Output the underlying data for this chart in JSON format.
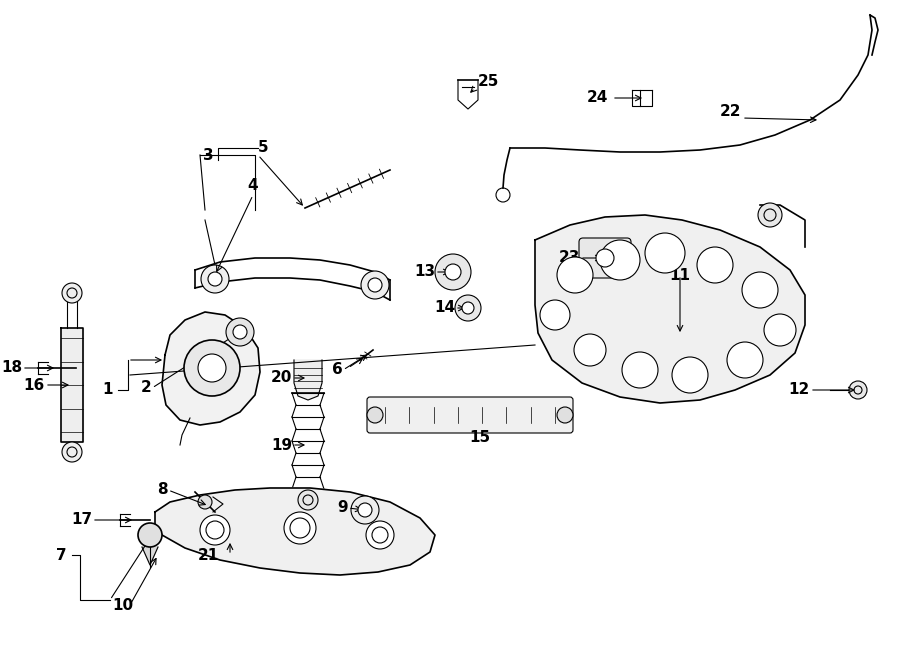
{
  "bg_color": "#ffffff",
  "line_color": "#000000",
  "fig_width": 9.0,
  "fig_height": 6.61,
  "dpi": 100
}
